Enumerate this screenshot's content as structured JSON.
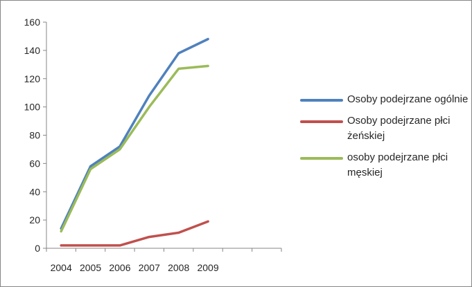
{
  "chart_data": {
    "type": "line",
    "title": "",
    "xlabel": "",
    "ylabel": "",
    "categories": [
      "2004",
      "2005",
      "2006",
      "2007",
      "2008",
      "2009"
    ],
    "ylim": [
      0,
      160
    ],
    "yticks": [
      "0",
      "20",
      "40",
      "60",
      "80",
      "100",
      "120",
      "140",
      "160"
    ],
    "grid": false,
    "legend_position": "right",
    "series": [
      {
        "name": "Osoby podejrzane ogólnie",
        "color": "#4F81BD",
        "values": [
          14,
          58,
          72,
          108,
          138,
          148
        ]
      },
      {
        "name": "Osoby podejrzane płci żeńskiej",
        "color": "#C0504D",
        "values": [
          2,
          2,
          2,
          8,
          11,
          19
        ]
      },
      {
        "name": "osoby podejrzane płci męskiej",
        "color": "#9BBB59",
        "values": [
          12,
          56,
          70,
          100,
          127,
          129
        ]
      }
    ]
  }
}
